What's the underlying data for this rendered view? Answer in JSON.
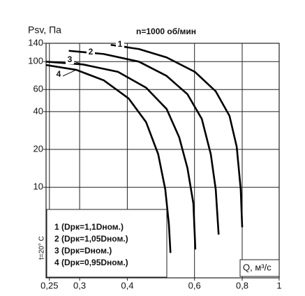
{
  "chart_data": {
    "type": "line",
    "title": "n=1000 об/мин",
    "y_label": "Psv, Па",
    "x_label": "Q, м³/с",
    "note": "t=20° C",
    "log_x": true,
    "log_y": true,
    "grid": true,
    "color": "#000000",
    "xlim": [
      0.245,
      1
    ],
    "ylim": [
      1.9,
      140
    ],
    "xticks": [
      {
        "value": 0.25,
        "label": "0,25"
      },
      {
        "value": 0.3,
        "label": "0,3"
      },
      {
        "value": 0.4,
        "label": "0,4"
      },
      {
        "value": 0.6,
        "label": "0,6"
      },
      {
        "value": 0.8,
        "label": "0,8"
      },
      1
    ],
    "yticks": [
      10,
      20,
      40,
      60,
      100,
      140
    ],
    "legend": [
      "1 (Dрк=1,1Dном.)",
      "2 (Dрк=1,05Dном.)",
      "3 (Dрк=Dном.)",
      "4 (Dрк=0,95Dном.)"
    ],
    "series": [
      {
        "name": "1",
        "color": "#000000",
        "x": [
          0.362,
          0.429,
          0.507,
          0.601,
          0.682,
          0.741,
          0.774,
          0.793,
          0.8
        ],
        "values": [
          136,
          126,
          108,
          83,
          58,
          37,
          21,
          9.6,
          4.8
        ]
      },
      {
        "name": "2",
        "color": "#000000",
        "x": [
          0.281,
          0.347,
          0.429,
          0.507,
          0.575,
          0.627,
          0.662,
          0.682,
          0.694
        ],
        "values": [
          122,
          115,
          100,
          77,
          55,
          35,
          18.3,
          9.6,
          4.2
        ]
      },
      {
        "name": "3",
        "color": "#000000",
        "x": [
          0.245,
          0.306,
          0.378,
          0.448,
          0.507,
          0.547,
          0.575,
          0.596,
          0.603
        ],
        "values": [
          100,
          95,
          83,
          62,
          42,
          25,
          14.2,
          7.4,
          3.2
        ]
      },
      {
        "name": "4",
        "color": "#000000",
        "x": [
          0.245,
          0.294,
          0.347,
          0.403,
          0.448,
          0.482,
          0.503,
          0.514,
          0.519
        ],
        "values": [
          94,
          86,
          71,
          51,
          33,
          18.3,
          9.6,
          5.1,
          3.0
        ]
      }
    ]
  }
}
